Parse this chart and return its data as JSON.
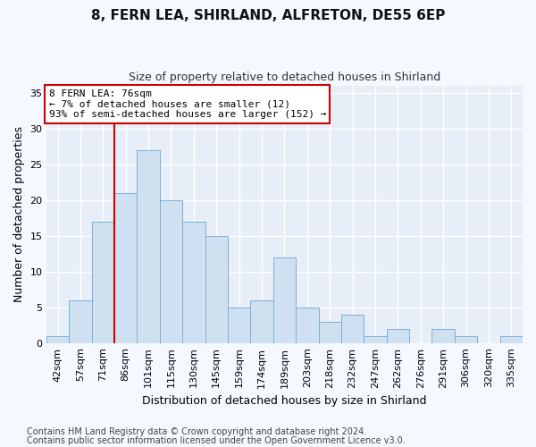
{
  "title1": "8, FERN LEA, SHIRLAND, ALFRETON, DE55 6EP",
  "title2": "Size of property relative to detached houses in Shirland",
  "xlabel": "Distribution of detached houses by size in Shirland",
  "ylabel": "Number of detached properties",
  "categories": [
    "42sqm",
    "57sqm",
    "71sqm",
    "86sqm",
    "101sqm",
    "115sqm",
    "130sqm",
    "145sqm",
    "159sqm",
    "174sqm",
    "189sqm",
    "203sqm",
    "218sqm",
    "232sqm",
    "247sqm",
    "262sqm",
    "276sqm",
    "291sqm",
    "306sqm",
    "320sqm",
    "335sqm"
  ],
  "values": [
    1,
    6,
    17,
    21,
    27,
    20,
    17,
    15,
    5,
    6,
    12,
    5,
    3,
    4,
    1,
    2,
    0,
    2,
    1,
    0,
    1
  ],
  "bar_color": "#cfe0f0",
  "bar_edge_color": "#7ab0d8",
  "vline_pos": 2.5,
  "vline_color": "#cc0000",
  "annotation_line1": "8 FERN LEA: 76sqm",
  "annotation_line2": "← 7% of detached houses are smaller (12)",
  "annotation_line3": "93% of semi-detached houses are larger (152) →",
  "annotation_box_color": "white",
  "annotation_box_edge_color": "#cc0000",
  "ylim": [
    0,
    36
  ],
  "yticks": [
    0,
    5,
    10,
    15,
    20,
    25,
    30,
    35
  ],
  "footer1": "Contains HM Land Registry data © Crown copyright and database right 2024.",
  "footer2": "Contains public sector information licensed under the Open Government Licence v3.0.",
  "bg_color": "#f5f8ff",
  "plot_bg_color": "#e8eef8",
  "grid_color": "#ffffff",
  "title1_fontsize": 11,
  "title2_fontsize": 9,
  "axis_label_fontsize": 9,
  "tick_fontsize": 8,
  "annotation_fontsize": 8,
  "footer_fontsize": 7
}
